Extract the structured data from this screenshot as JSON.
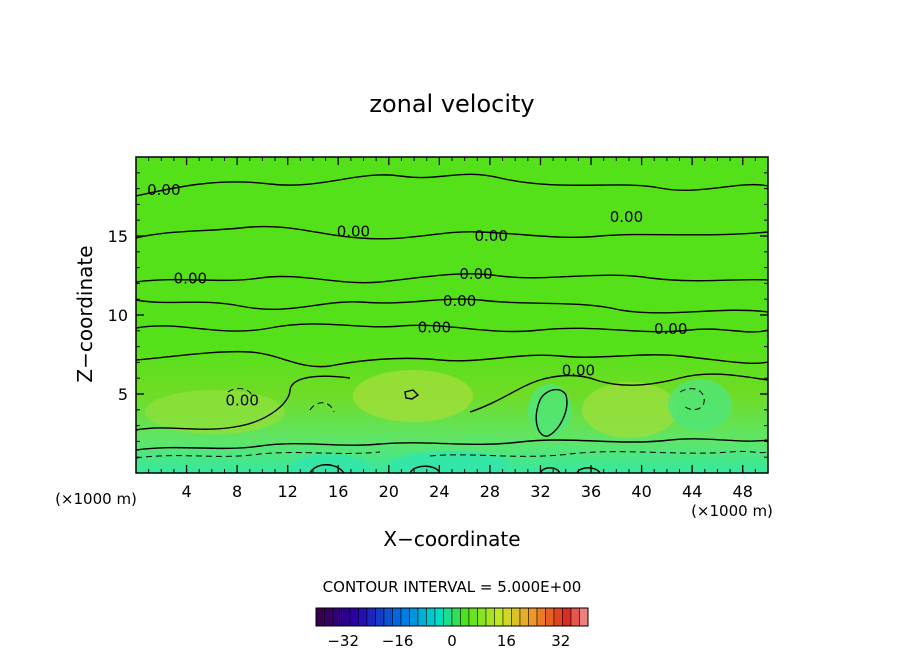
{
  "chart_data": {
    "type": "heatmap",
    "title": "zonal velocity",
    "xlabel": "X−coordinate",
    "ylabel": "Z−coordinate",
    "x_unit_left": "(×1000 m)",
    "x_unit_right": "(×1000 m)",
    "xlim": [
      0,
      50
    ],
    "ylim": [
      0,
      20
    ],
    "x_ticks": [
      4,
      8,
      12,
      16,
      20,
      24,
      28,
      32,
      36,
      40,
      44,
      48
    ],
    "y_ticks": [
      5,
      10,
      15
    ],
    "contour_interval_text": "CONTOUR INTERVAL = 5.000E+00",
    "contour_labels": [
      {
        "text": "0.00",
        "x": 2.2,
        "z": 17.9
      },
      {
        "text": "0.00",
        "x": 17.2,
        "z": 15.3
      },
      {
        "text": "0.00",
        "x": 28.1,
        "z": 15.0
      },
      {
        "text": "0.00",
        "x": 38.8,
        "z": 16.2
      },
      {
        "text": "0.00",
        "x": 4.3,
        "z": 12.3
      },
      {
        "text": "0.00",
        "x": 26.9,
        "z": 12.6
      },
      {
        "text": "0.00",
        "x": 25.6,
        "z": 10.9
      },
      {
        "text": "0.00",
        "x": 23.6,
        "z": 9.2
      },
      {
        "text": "0.00",
        "x": 42.3,
        "z": 9.1
      },
      {
        "text": "0.00",
        "x": 35.0,
        "z": 6.5
      },
      {
        "text": "0.00",
        "x": 8.4,
        "z": 4.6
      }
    ],
    "colorbar": {
      "range": [
        -40,
        40
      ],
      "tick_values": [
        -32,
        -16,
        0,
        16,
        32
      ],
      "tick_labels": [
        "−32",
        "−16",
        "0",
        "16",
        "32"
      ]
    },
    "grid": false
  }
}
